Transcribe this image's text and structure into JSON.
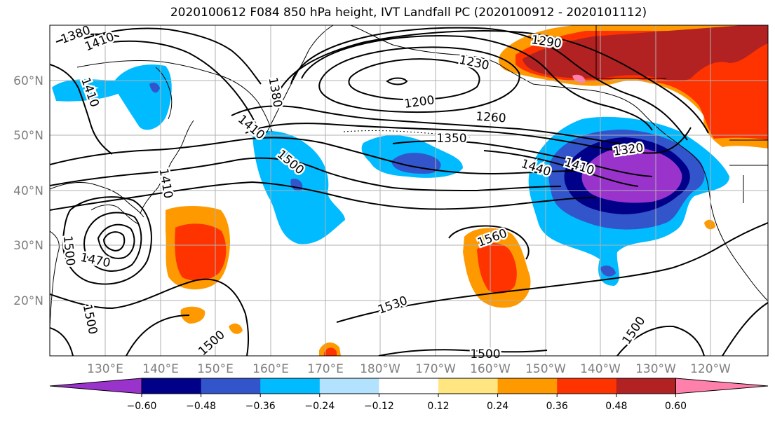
{
  "title": "2020100612 F084 850 hPa height, IVT Landfall PC (2020100912 - 2020101112)",
  "map": {
    "lon_labels": [
      "130°E",
      "140°E",
      "150°E",
      "160°E",
      "170°E",
      "180°W",
      "170°W",
      "160°W",
      "150°W",
      "140°W",
      "130°W",
      "120°W"
    ],
    "lat_labels": [
      "60°N",
      "50°N",
      "40°N",
      "30°N",
      "20°N"
    ],
    "contour_labels": [
      "1380",
      "1410",
      "1410",
      "1380",
      "1410",
      "1500",
      "1410",
      "1350",
      "1200",
      "1230",
      "1290",
      "1260",
      "1320",
      "1440",
      "1410",
      "1500",
      "1470",
      "1530",
      "1560",
      "1500",
      "1500",
      "1500",
      "1500"
    ]
  },
  "colorbar": {
    "ticks": [
      "−0.60",
      "−0.48",
      "−0.36",
      "−0.24",
      "−0.12",
      "0.12",
      "0.24",
      "0.36",
      "0.48",
      "0.60"
    ],
    "colors": {
      "neg_extend": "#9933cc",
      "neg_060": "#000088",
      "neg_048": "#3355cc",
      "neg_036": "#00bbff",
      "neg_024": "#b3e2ff",
      "neutral": "#ffffff",
      "pos_012": "#ffe680",
      "pos_024": "#ff9900",
      "pos_036": "#ff3300",
      "pos_048": "#b32222",
      "pos_extend": "#ff80aa"
    }
  }
}
